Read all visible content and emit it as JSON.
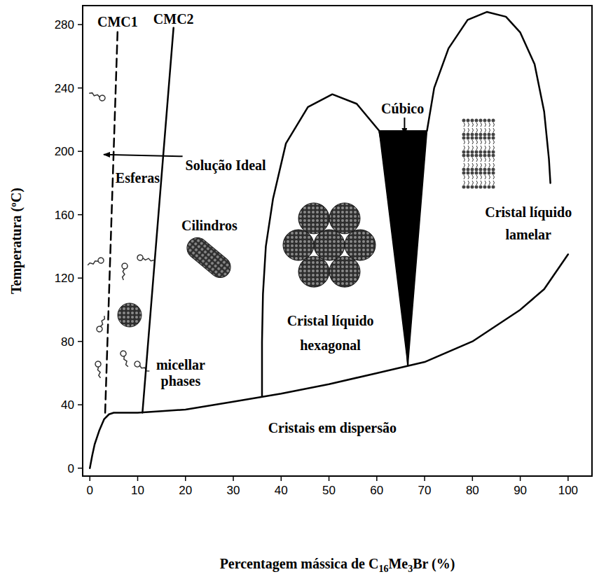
{
  "chart_data": {
    "type": "line",
    "xlabel": "Percentagem mássica de C16Me3Br (%)",
    "ylabel": "Temperatura (ºC)",
    "xlim": [
      -1.5,
      105
    ],
    "ylim": [
      -5,
      292
    ],
    "xticks": [
      0,
      10,
      20,
      30,
      40,
      50,
      60,
      70,
      80,
      90,
      100
    ],
    "yticks": [
      0,
      40,
      80,
      120,
      160,
      200,
      240,
      280
    ],
    "grid": false,
    "series": [
      {
        "name": "CMC1",
        "color": "#000000",
        "line_style": "dashed",
        "x": [
          3.2,
          5.8
        ],
        "values": [
          35,
          276
        ]
      },
      {
        "name": "CMC2",
        "color": "#000000",
        "line_style": "solid",
        "x": [
          11,
          17.5
        ],
        "values": [
          35,
          278
        ]
      },
      {
        "color": "#000000",
        "line_style": "solid",
        "x": [
          0,
          0.5,
          1,
          2,
          3,
          4,
          5,
          10,
          15,
          20,
          30,
          40,
          50,
          60,
          70,
          80,
          90,
          95,
          100
        ],
        "values": [
          0,
          8,
          15,
          24,
          31,
          34,
          35,
          35,
          36,
          37,
          42,
          47,
          53,
          60,
          67,
          80,
          100,
          113,
          135
        ]
      },
      {
        "color": "#000000",
        "line_style": "solid",
        "x": [
          36,
          36,
          36.2,
          36.8,
          38.3,
          41,
          45.6,
          50.7,
          55.8,
          60.5,
          62,
          63.5,
          65,
          66,
          66.5
        ],
        "values": [
          45,
          80,
          110,
          140,
          170,
          205,
          228,
          236,
          230,
          213,
          190,
          160,
          120,
          90,
          65
        ]
      },
      {
        "type": "area",
        "color": "#000000",
        "x": [
          60.5,
          70.5,
          66.5
        ],
        "values": [
          213,
          213,
          65
        ]
      },
      {
        "color": "#000000",
        "line_style": "solid",
        "x": [
          70.5,
          72,
          75,
          79,
          83,
          87,
          90,
          93,
          95,
          96,
          96.3
        ],
        "values": [
          213,
          240,
          265,
          283,
          288,
          285,
          275,
          255,
          225,
          195,
          180
        ]
      }
    ],
    "annotations": [
      {
        "text": "Solução Ideal",
        "x": 28.4,
        "y": 188,
        "arrow_x": 2.9,
        "arrow_y": 198
      },
      {
        "text": "Esferas",
        "x": 10,
        "y": 180
      },
      {
        "text": "Cilindros",
        "x": 25,
        "y": 150
      },
      {
        "text": "micellar",
        "x": 19,
        "y": 62
      },
      {
        "text": "phases",
        "x": 19,
        "y": 52
      },
      {
        "text": "Cristal líquido",
        "x": 50.3,
        "y": 90
      },
      {
        "text": "hexagonal",
        "x": 50.3,
        "y": 74.5
      },
      {
        "text": "Cúbico",
        "x": 65.4,
        "y": 224,
        "arrow_x": 65.8,
        "arrow_y": 210.7
      },
      {
        "text": "Cristal líquido",
        "x": 91.7,
        "y": 158.5
      },
      {
        "text": "lamelar",
        "x": 91.7,
        "y": 144.5
      },
      {
        "text": "Cristais em dispersão",
        "x": 50.7,
        "y": 22.4
      }
    ]
  }
}
